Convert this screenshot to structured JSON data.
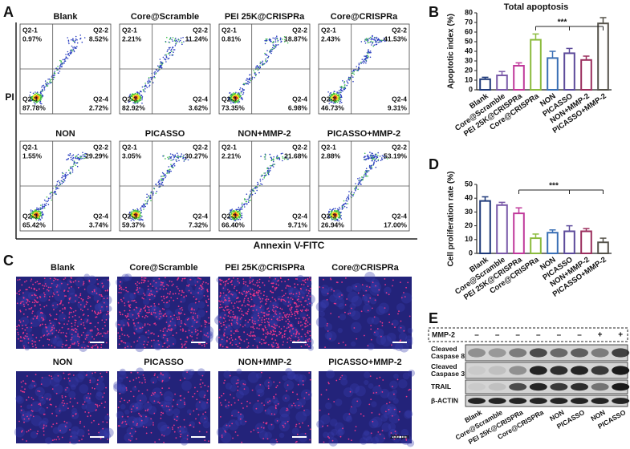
{
  "panel_a": {
    "label": "A",
    "y_label": "PI",
    "x_label": "Annexin V-FITC",
    "quadrant_names": [
      "Q2-1",
      "Q2-2",
      "Q2-3",
      "Q2-4"
    ],
    "plots": [
      {
        "title": "Blank",
        "quadrants": [
          "0.97%",
          "8.52%",
          "87.78%",
          "2.72%"
        ]
      },
      {
        "title": "Core@Scramble",
        "quadrants": [
          "2.21%",
          "11.24%",
          "82.92%",
          "3.62%"
        ]
      },
      {
        "title": "PEI 25K@CRISPRa",
        "quadrants": [
          "0.81%",
          "18.87%",
          "73.35%",
          "6.98%"
        ]
      },
      {
        "title": "Core@CRISPRa",
        "quadrants": [
          "2.43%",
          "41.53%",
          "46.73%",
          "9.31%"
        ]
      },
      {
        "title": "NON",
        "quadrants": [
          "1.55%",
          "29.29%",
          "65.42%",
          "3.74%"
        ]
      },
      {
        "title": "PICASSO",
        "quadrants": [
          "3.05%",
          "30.27%",
          "59.37%",
          "7.32%"
        ]
      },
      {
        "title": "NON+MMP-2",
        "quadrants": [
          "2.21%",
          "21.68%",
          "66.40%",
          "9.71%"
        ]
      },
      {
        "title": "PICASSO+MMP-2",
        "quadrants": [
          "2.88%",
          "53.19%",
          "26.94%",
          "17.00%"
        ]
      }
    ]
  },
  "chart_data": [
    {
      "type": "bar",
      "label": "B",
      "title": "Total apoptosis",
      "y_label": "Apoptotic index (%)",
      "categories": [
        "Blank",
        "Core@Scramble",
        "PEI 25K@CRISPRa",
        "Core@CRISPRa",
        "NON",
        "PICASSO",
        "NON+MMP-2",
        "PICASSO+MMP-2"
      ],
      "values": [
        11,
        15,
        25,
        52,
        33,
        38,
        31,
        69
      ],
      "errors": [
        2,
        4,
        3,
        6,
        7,
        5,
        4,
        6
      ],
      "colors": [
        "#1f3a7a",
        "#7a5aa8",
        "#c0399b",
        "#8bbb3d",
        "#3a6fb5",
        "#5c4a9a",
        "#9b2f5e",
        "#55524a"
      ],
      "ylim": [
        0,
        80
      ],
      "yticks": [
        0,
        10,
        20,
        30,
        40,
        50,
        60,
        70,
        80
      ],
      "annotation": "***"
    },
    {
      "type": "bar",
      "label": "D",
      "y_label": "Cell proliferation rate (%)",
      "categories": [
        "Blank",
        "Core@Scramble",
        "PEI 25K@CRISPRa",
        "Core@CRISPRa",
        "NON",
        "PICASSO",
        "NON+MMP-2",
        "PICASSO+MMP-2"
      ],
      "values": [
        38,
        35,
        29,
        11,
        15,
        16,
        16,
        8
      ],
      "errors": [
        3,
        2,
        4,
        3,
        2,
        4,
        2,
        3
      ],
      "colors": [
        "#1f3a7a",
        "#7a5aa8",
        "#c0399b",
        "#8bbb3d",
        "#3a6fb5",
        "#5c4a9a",
        "#9b2f5e",
        "#55524a"
      ],
      "ylim": [
        0,
        50
      ],
      "yticks": [
        0,
        10,
        20,
        30,
        40,
        50
      ],
      "annotation": "***"
    }
  ],
  "panel_c": {
    "label": "C",
    "titles": [
      "Blank",
      "Core@Scramble",
      "PEI 25K@CRISPRa",
      "Core@CRISPRa",
      "NON",
      "PICASSO",
      "NON+MMP-2",
      "PICASSO+MMP-2"
    ],
    "scale_label": "200 µm"
  },
  "panel_e": {
    "label": "E",
    "mmp2": {
      "label": "MMP-2",
      "signs": [
        "–",
        "–",
        "–",
        "–",
        "–",
        "–",
        "+",
        "+"
      ]
    },
    "rows": [
      [
        "Cleaved",
        "Caspase 8"
      ],
      [
        "Cleaved",
        "Caspase 3"
      ],
      [
        "TRAIL"
      ],
      [
        "β-ACTIN"
      ]
    ],
    "lanes": [
      "Blank",
      "Core@Scramble",
      "PEI 25K@CRISPRa",
      "Core@CRISPRa",
      "NON",
      "PICASSO",
      "NON",
      "PICASSO"
    ]
  }
}
